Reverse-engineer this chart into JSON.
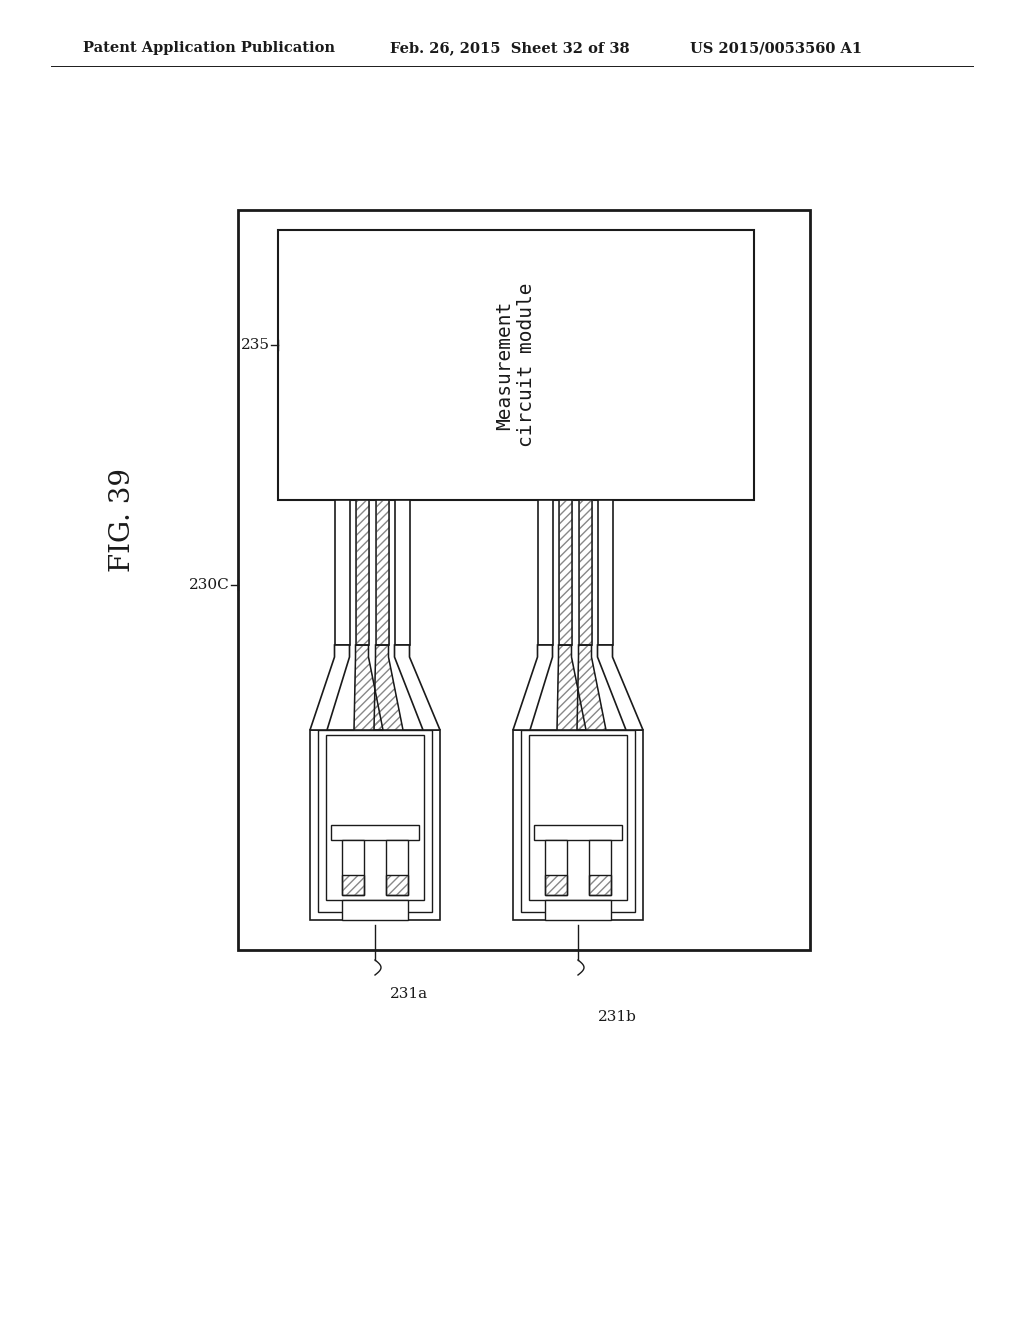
{
  "bg_color": "#ffffff",
  "header_left": "Patent Application Publication",
  "header_mid": "Feb. 26, 2015  Sheet 32 of 38",
  "header_right": "US 2015/0053560 A1",
  "fig_label": "FIG. 39",
  "module_text": "Measurement\ncircuit module",
  "label_235": "235",
  "label_230C": "230C",
  "label_231a": "231a",
  "label_231b": "231b",
  "line_color": "#1a1a1a",
  "hatch_str": "////"
}
